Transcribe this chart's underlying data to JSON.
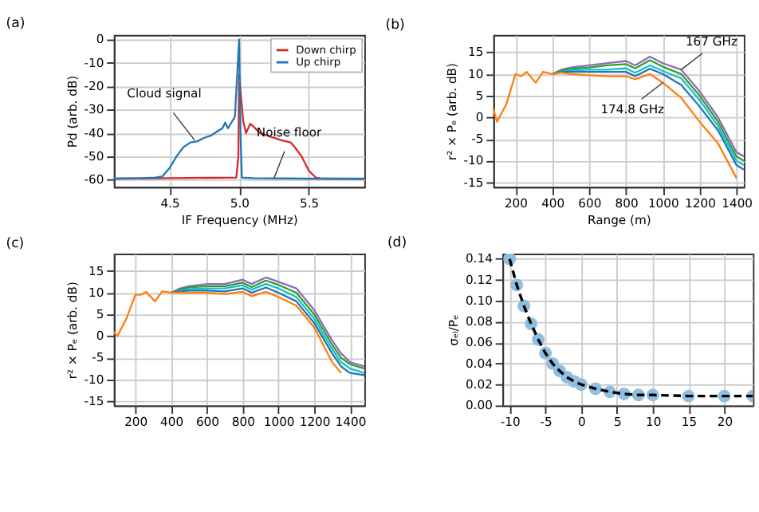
{
  "chart_data": [
    {
      "type": "line",
      "title": "(a)",
      "xlabel": "IF Frequency (MHz)",
      "ylabel": "Pd (arb. dB)",
      "xlim": [
        4.1,
        5.9
      ],
      "xticks": [
        {
          "value": 4.5,
          "label": "4.5"
        },
        {
          "value": 5.0,
          "label": "5.0"
        },
        {
          "value": 5.5,
          "label": "5.5"
        }
      ],
      "ylim": [
        -63,
        2
      ],
      "yticks": [
        -60,
        -50,
        -40,
        -30,
        -20,
        -10,
        0
      ],
      "grid": true,
      "legend": "top right",
      "annotations": [
        {
          "text": "Cloud signal",
          "x": 4.68,
          "y": -43
        },
        {
          "text": "Noise floor",
          "x": 5.25,
          "y": -59.5
        }
      ],
      "series": [
        {
          "name": "Down chirp",
          "color": "#d62728",
          "x": [
            4.1,
            4.5,
            4.98,
            4.995,
            5.0,
            5.03,
            5.05,
            5.08,
            5.1,
            5.15,
            5.2,
            5.3,
            5.37,
            5.4,
            5.45,
            5.5,
            5.55,
            5.6,
            5.9
          ],
          "values": [
            -59.5,
            -59.3,
            -59,
            -50,
            -15,
            -35,
            -40,
            -36,
            -37,
            -40,
            -41,
            -43,
            -44,
            -46,
            -50,
            -56,
            -59,
            -59.5,
            -59.6
          ]
        },
        {
          "name": "Up chirp",
          "color": "#1f77b4",
          "x": [
            4.1,
            4.3,
            4.4,
            4.45,
            4.5,
            4.55,
            4.6,
            4.65,
            4.7,
            4.75,
            4.8,
            4.85,
            4.88,
            4.9,
            4.92,
            4.95,
            4.97,
            5.0,
            5.01,
            5.02,
            5.1,
            5.5,
            5.9
          ],
          "values": [
            -59.5,
            -59.3,
            -59,
            -58.5,
            -55,
            -50,
            -46,
            -44,
            -43.5,
            -42,
            -41,
            -39,
            -38,
            -35.5,
            -38,
            -35,
            -33,
            0,
            -40,
            -59,
            -59.3,
            -59.5,
            -59.5
          ]
        }
      ]
    },
    {
      "type": "line",
      "title": "(b)",
      "xlabel": "Range (m)",
      "ylabel": "r² × Pₑ (arb. dB)",
      "xlim": [
        80,
        1440
      ],
      "xticks": [
        200,
        400,
        600,
        800,
        1000,
        1200,
        1400
      ],
      "ylim": [
        -16,
        19
      ],
      "yticks": [
        -15,
        -10,
        -5,
        0,
        5,
        10,
        15
      ],
      "grid": true,
      "annotations": [
        {
          "text": "167 GHz",
          "x": 1100,
          "y": 11
        },
        {
          "text": "174.8 GHz",
          "x": 1000,
          "y": 8
        }
      ],
      "x": [
        80,
        100,
        150,
        200,
        230,
        260,
        310,
        350,
        400,
        450,
        500,
        600,
        700,
        800,
        850,
        930,
        1000,
        1100,
        1200,
        1300,
        1350,
        1400,
        1440
      ],
      "series": [
        {
          "color": "#9467bd",
          "values": [
            null,
            null,
            null,
            null,
            null,
            null,
            null,
            null,
            10,
            11,
            11.5,
            12,
            12.5,
            13,
            12,
            14,
            12.5,
            11,
            6,
            0,
            -4,
            -8,
            -9
          ]
        },
        {
          "color": "#2ca02c",
          "values": [
            null,
            null,
            null,
            null,
            null,
            null,
            null,
            null,
            10,
            10.8,
            11.2,
            11.5,
            12,
            12.3,
            11.3,
            13.2,
            11.7,
            10,
            5,
            -1,
            -5,
            -9,
            -10
          ]
        },
        {
          "color": "#17becf",
          "values": [
            null,
            null,
            null,
            null,
            null,
            null,
            null,
            null,
            10,
            10.6,
            10.8,
            11,
            11,
            11.3,
            10.3,
            12,
            10.7,
            9,
            4,
            -2,
            -6,
            -10,
            -11
          ]
        },
        {
          "color": "#1f77b4",
          "values": [
            null,
            null,
            null,
            null,
            null,
            null,
            null,
            null,
            10,
            10.5,
            10.5,
            10.5,
            10.5,
            10.5,
            9.5,
            11.2,
            10,
            7.5,
            2.5,
            -3,
            -7,
            -11,
            -12
          ]
        },
        {
          "color": "#ff7f0e",
          "values": [
            2,
            -1,
            3,
            10,
            9.5,
            10.5,
            8,
            10.5,
            10,
            10.3,
            10,
            9.7,
            9.5,
            9.5,
            8.8,
            10,
            8,
            4.5,
            -1,
            -6,
            -10,
            -14,
            null
          ]
        }
      ]
    },
    {
      "type": "line",
      "title": "(c)",
      "ylabel": "r² × Pₑ (arb. dB)",
      "xlim": [
        80,
        1480
      ],
      "xticks": [
        200,
        400,
        600,
        800,
        1000,
        1200,
        1400
      ],
      "ylim": [
        -16,
        19
      ],
      "yticks": [
        -15,
        -10,
        -5,
        0,
        5,
        10,
        15
      ],
      "grid": true,
      "x": [
        80,
        100,
        150,
        200,
        230,
        260,
        310,
        350,
        400,
        450,
        500,
        600,
        700,
        800,
        850,
        930,
        1000,
        1100,
        1200,
        1300,
        1350,
        1400,
        1480
      ],
      "series": [
        {
          "color": "#9467bd",
          "values": [
            null,
            null,
            null,
            null,
            null,
            null,
            null,
            null,
            10,
            11,
            11.5,
            12,
            12,
            13,
            12,
            13.5,
            12.5,
            11,
            6,
            -1,
            -4,
            -6,
            -7
          ]
        },
        {
          "color": "#2ca02c",
          "values": [
            null,
            null,
            null,
            null,
            null,
            null,
            null,
            null,
            10,
            10.7,
            11.2,
            11.5,
            11.5,
            12.3,
            11.3,
            12.8,
            11.8,
            10,
            5,
            -2,
            -5,
            -6.5,
            -7.5
          ]
        },
        {
          "color": "#17becf",
          "values": [
            null,
            null,
            null,
            null,
            null,
            null,
            null,
            null,
            10,
            10.5,
            10.8,
            11,
            11,
            11.7,
            10.7,
            12,
            11,
            9,
            4,
            -3,
            -6,
            -7.5,
            -8.5
          ]
        },
        {
          "color": "#1f77b4",
          "values": [
            null,
            null,
            null,
            null,
            null,
            null,
            null,
            null,
            10,
            10.3,
            10.5,
            10.5,
            10.3,
            11,
            10,
            11.2,
            10,
            8,
            3,
            -4,
            -7,
            -8.5,
            -9
          ]
        },
        {
          "color": "#ff7f0e",
          "values": [
            1,
            0,
            4,
            9.5,
            9.5,
            10.2,
            8,
            10.3,
            10,
            10,
            10,
            10,
            9.7,
            10.2,
            9.2,
            10.2,
            9,
            7,
            2,
            -6,
            -8.5,
            null,
            null
          ]
        }
      ]
    },
    {
      "type": "line",
      "title": "(d)",
      "ylabel": "σₑₗ/Pₑ",
      "xlim": [
        -11,
        24
      ],
      "xticks": [
        -10,
        -5,
        0,
        5,
        10,
        15,
        20
      ],
      "ylim": [
        0,
        0.145
      ],
      "yticks": [
        {
          "value": 0,
          "label": "0.00"
        },
        {
          "value": 0.02,
          "label": "0.02"
        },
        {
          "value": 0.04,
          "label": "0.04"
        },
        {
          "value": 0.06,
          "label": "0.06"
        },
        {
          "value": 0.08,
          "label": "0.08"
        },
        {
          "value": 0.1,
          "label": "0.10"
        },
        {
          "value": 0.12,
          "label": "0.12"
        },
        {
          "value": 0.14,
          "label": "0.14"
        }
      ],
      "grid": true,
      "x": [
        -10,
        -9,
        -8,
        -7,
        -6,
        -5,
        -4,
        -3,
        -2,
        -1,
        0,
        2,
        4,
        6,
        8,
        10,
        15,
        20,
        24
      ],
      "series": [
        {
          "type": "scatter",
          "marker": "circle",
          "color": "#8fbfe0",
          "values": [
            0.14,
            0.115,
            0.095,
            0.078,
            0.063,
            0.05,
            0.04,
            0.033,
            0.027,
            0.023,
            0.02,
            0.016,
            0.013,
            0.011,
            0.01,
            0.01,
            0.009,
            0.009,
            0.009
          ]
        },
        {
          "type": "line",
          "line_style": "dashed",
          "color": "#000000",
          "values": [
            0.14,
            0.115,
            0.095,
            0.078,
            0.063,
            0.05,
            0.04,
            0.033,
            0.027,
            0.023,
            0.02,
            0.016,
            0.013,
            0.011,
            0.01,
            0.01,
            0.009,
            0.009,
            0.009
          ]
        }
      ]
    }
  ]
}
